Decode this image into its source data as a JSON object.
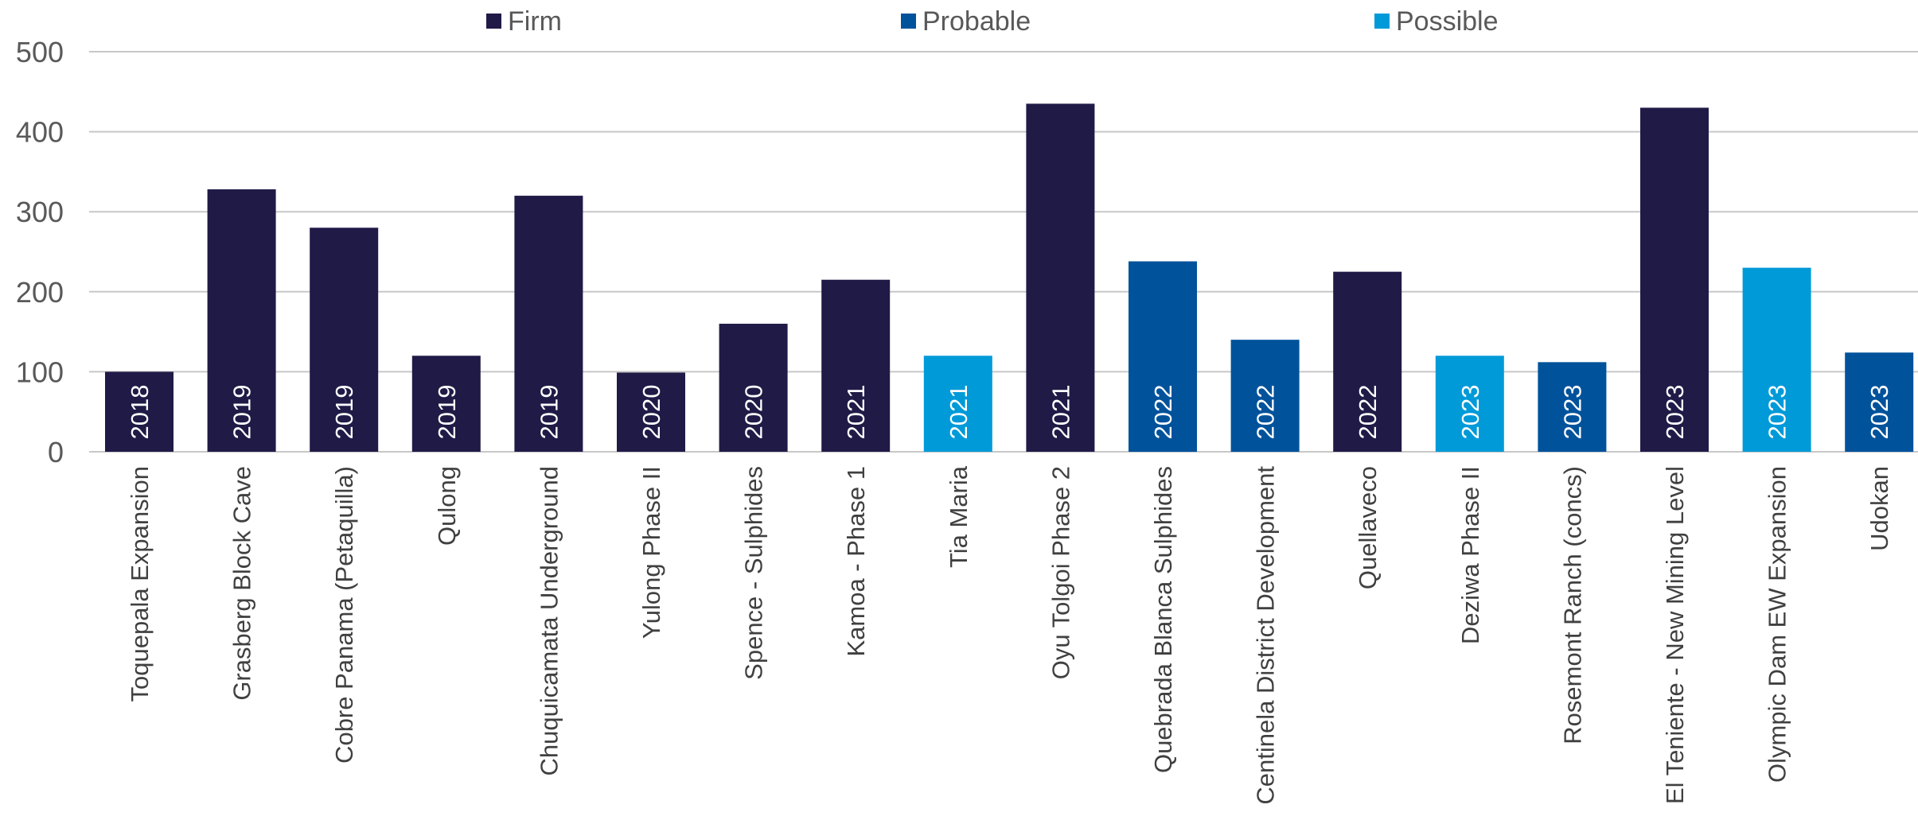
{
  "chart_data": {
    "type": "bar",
    "title": "",
    "xlabel": "",
    "ylabel": "",
    "ylim": [
      0,
      500
    ],
    "yticks": [
      0,
      100,
      200,
      300,
      400,
      500
    ],
    "grid": true,
    "legend_position": "top",
    "legend": [
      {
        "name": "Firm",
        "color": "#201a47"
      },
      {
        "name": "Probable",
        "color": "#00529b"
      },
      {
        "name": "Possible",
        "color": "#009ad9"
      }
    ],
    "categories": [
      "Toquepala Expansion",
      "Grasberg Block Cave",
      "Cobre Panama (Petaquilla)",
      "Qulong",
      "Chuquicamata Underground",
      "Yulong Phase II",
      "Spence - Sulphides",
      "Kamoa - Phase 1",
      "Tia Maria",
      "Oyu Tolgoi Phase 2",
      "Quebrada Blanca Sulphides",
      "Centinela District Development",
      "Quellaveco",
      "Deziwa Phase II",
      "Rosemont Ranch (concs)",
      "El Teniente - New Mining Level",
      "Olympic Dam EW Expansion",
      "Udokan"
    ],
    "values": [
      100,
      328,
      280,
      120,
      320,
      99,
      160,
      215,
      120,
      435,
      238,
      140,
      225,
      120,
      112,
      430,
      230,
      124
    ],
    "years": [
      "2018",
      "2019",
      "2019",
      "2019",
      "2019",
      "2020",
      "2020",
      "2021",
      "2021",
      "2021",
      "2022",
      "2022",
      "2022",
      "2023",
      "2023",
      "2023",
      "2023",
      "2023"
    ],
    "status": [
      "Firm",
      "Firm",
      "Firm",
      "Firm",
      "Firm",
      "Firm",
      "Firm",
      "Firm",
      "Possible",
      "Firm",
      "Probable",
      "Probable",
      "Firm",
      "Possible",
      "Probable",
      "Firm",
      "Possible",
      "Probable"
    ]
  }
}
